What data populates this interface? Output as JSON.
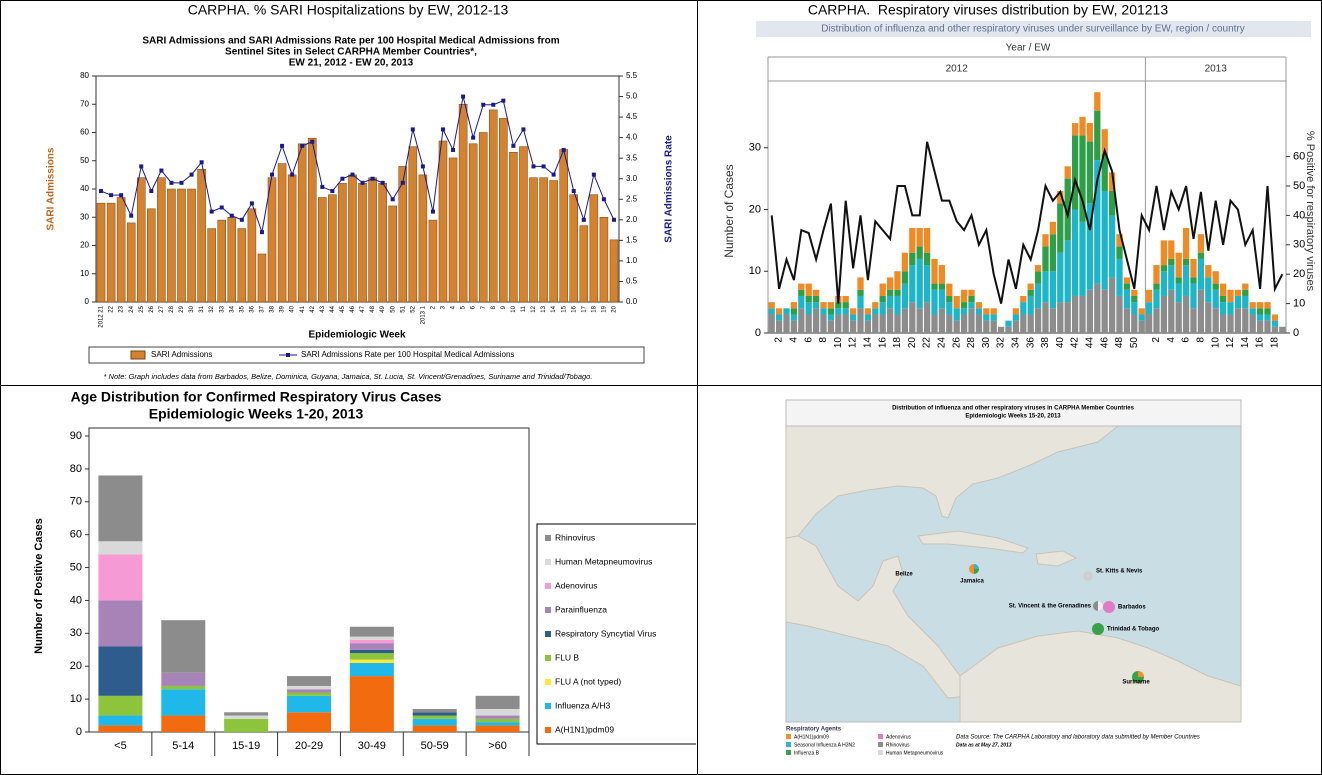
{
  "panels": [
    "CARPHA. % SARI Hospitalizations by EW, 2012-13",
    "CARPHA.  Respiratory viruses distribution by EW, 201213"
  ],
  "chart_data": [
    {
      "type": "bar",
      "title": [
        "SARI Admissions and SARI Admissions Rate per 100 Hospital Medical Admissions from",
        "Sentinel Sites in Select CARPHA Member Countries*,",
        "EW 21, 2012 - EW 20, 2013"
      ],
      "x_label": "Epidemiologic Week",
      "y_label": "SARI Admissions",
      "y2_label": "SARI Admissions Rate",
      "note": "* Note: Graph includes data from Barbados, Belize, Dominica, Guyana, Jamaica, St. Lucia, St. Vincent/Grenadines, Suriname and Trinidad/Tobago.",
      "legend": "bottom",
      "categories": [
        "2012 21",
        "22",
        "23",
        "24",
        "25",
        "26",
        "27",
        "28",
        "29",
        "30",
        "31",
        "32",
        "33",
        "34",
        "35",
        "36",
        "37",
        "38",
        "39",
        "40",
        "41",
        "42",
        "43",
        "44",
        "45",
        "46",
        "47",
        "48",
        "49",
        "50",
        "51",
        "52",
        "2013 1",
        "2",
        "3",
        "4",
        "5",
        "6",
        "7",
        "8",
        "9",
        "10",
        "11",
        "12",
        "13",
        "14",
        "15",
        "16",
        "17",
        "18",
        "19",
        "20"
      ],
      "series": [
        {
          "name": "SARI Admissions",
          "type": "bar",
          "color": "#d3822f",
          "values": [
            35,
            35,
            37,
            28,
            44,
            33,
            44,
            40,
            40,
            40,
            47,
            26,
            29,
            30,
            26,
            33,
            17,
            44,
            49,
            45,
            56,
            58,
            37,
            38,
            42,
            45,
            42,
            44,
            42,
            34,
            48,
            55,
            45,
            29,
            57,
            51,
            70,
            56,
            60,
            68,
            65,
            53,
            55,
            44,
            44,
            43,
            54,
            38,
            27,
            38,
            30,
            22
          ]
        },
        {
          "name": "SARI Admissions Rate per 100 Hospital Medical Admissions",
          "type": "line",
          "axis": "y2",
          "color": "#1a1a8c",
          "marker": true,
          "values": [
            2.7,
            2.6,
            2.6,
            2.1,
            3.3,
            2.7,
            3.2,
            2.9,
            2.9,
            3.1,
            3.4,
            2.2,
            2.3,
            2.1,
            2.0,
            2.4,
            1.7,
            3.1,
            3.8,
            3.1,
            3.8,
            3.9,
            2.8,
            2.7,
            3.0,
            3.1,
            2.9,
            3.0,
            2.9,
            2.5,
            2.9,
            4.2,
            3.3,
            2.2,
            4.2,
            3.7,
            5.0,
            4.0,
            4.8,
            4.8,
            4.9,
            3.8,
            4.2,
            3.3,
            3.3,
            3.1,
            3.7,
            2.7,
            2.0,
            3.1,
            2.5,
            2.0
          ]
        }
      ],
      "ylim": [
        0,
        80
      ],
      "yticks": [
        0,
        10,
        20,
        30,
        40,
        50,
        60,
        70,
        80
      ],
      "y2lim": [
        0,
        5.5
      ],
      "y2ticks": [
        {
          "value": 0,
          "label": "0.0"
        },
        0.5,
        {
          "value": 1,
          "label": "1.0"
        },
        1.5,
        {
          "value": 2,
          "label": "2.0"
        },
        2.5,
        {
          "value": 3,
          "label": "3.0"
        },
        3.5,
        {
          "value": 4,
          "label": "4.0"
        },
        4.5,
        {
          "value": 5,
          "label": "5.0"
        },
        5.5
      ]
    },
    {
      "type": "stacked_bar",
      "title": "Distribution of influenza and other respiratory viruses under surveillance by EW, region / country",
      "x_label": "Year / EW",
      "years": [
        "2012",
        "2013"
      ],
      "y_label": "Number of Cases",
      "y2_label": "% Positive for respiratory viruses",
      "categories": [
        null,
        "2",
        null,
        "4",
        null,
        "6",
        null,
        "8",
        null,
        "10",
        null,
        "12",
        null,
        "14",
        null,
        "16",
        null,
        "18",
        null,
        "20",
        null,
        "22",
        null,
        "24",
        null,
        "26",
        null,
        "28",
        null,
        "30",
        null,
        "32",
        null,
        "34",
        null,
        "36",
        null,
        "38",
        null,
        "40",
        null,
        "42",
        null,
        "44",
        null,
        "46",
        null,
        "48",
        null,
        "50",
        null,
        null,
        "2",
        null,
        "4",
        null,
        "6",
        null,
        "8",
        null,
        "10",
        null,
        "12",
        null,
        "14",
        null,
        "16",
        null,
        "18",
        null
      ],
      "series": [
        {
          "color": "#8c8c8c",
          "values": [
            3,
            2,
            3,
            2,
            4,
            3,
            4,
            3,
            2,
            3,
            3,
            2,
            4,
            2,
            3,
            3,
            4,
            3,
            4,
            5,
            4,
            5,
            3,
            4,
            3,
            2,
            3,
            4,
            3,
            2,
            2,
            1,
            1,
            2,
            3,
            3,
            4,
            5,
            4,
            5,
            5,
            6,
            6,
            7,
            8,
            7,
            9,
            6,
            4,
            3,
            2,
            3,
            4,
            6,
            7,
            5,
            6,
            4,
            7,
            5,
            4,
            3,
            3,
            4,
            4,
            3,
            2,
            2,
            1,
            1
          ]
        },
        {
          "color": "#1fb5c8",
          "values": [
            1,
            1,
            1,
            1,
            2,
            2,
            1,
            1,
            1,
            1,
            1,
            1,
            2,
            1,
            1,
            2,
            2,
            3,
            4,
            6,
            8,
            6,
            4,
            3,
            2,
            2,
            1,
            1,
            1,
            1,
            1,
            0,
            1,
            1,
            2,
            3,
            4,
            5,
            6,
            8,
            10,
            14,
            12,
            14,
            20,
            16,
            10,
            6,
            3,
            2,
            1,
            2,
            3,
            4,
            4,
            3,
            5,
            4,
            5,
            4,
            3,
            2,
            2,
            2,
            2,
            1,
            1,
            1,
            1,
            0
          ]
        },
        {
          "color": "#2e9e48",
          "values": [
            0,
            0,
            0,
            1,
            1,
            1,
            1,
            0,
            1,
            1,
            1,
            0,
            1,
            0,
            0,
            1,
            1,
            1,
            2,
            2,
            2,
            2,
            1,
            1,
            1,
            0,
            1,
            1,
            0,
            0,
            0,
            0,
            0,
            0,
            0,
            1,
            2,
            4,
            6,
            8,
            10,
            12,
            14,
            10,
            8,
            6,
            4,
            2,
            1,
            1,
            0,
            0,
            1,
            1,
            1,
            1,
            1,
            1,
            1,
            0,
            1,
            1,
            0,
            0,
            1,
            0,
            1,
            1,
            0,
            0
          ]
        },
        {
          "color": "#f08a24",
          "values": [
            1,
            1,
            0,
            1,
            1,
            2,
            1,
            1,
            1,
            1,
            1,
            1,
            2,
            1,
            1,
            2,
            2,
            3,
            3,
            4,
            3,
            4,
            4,
            3,
            2,
            2,
            2,
            1,
            1,
            1,
            1,
            0,
            0,
            1,
            1,
            1,
            1,
            2,
            2,
            2,
            2,
            2,
            3,
            3,
            3,
            4,
            3,
            2,
            1,
            1,
            1,
            2,
            3,
            4,
            3,
            4,
            5,
            3,
            3,
            2,
            2,
            2,
            2,
            1,
            1,
            1,
            1,
            1,
            1,
            0
          ]
        },
        {
          "type": "line",
          "axis": "y2",
          "color": "#111111",
          "values": [
            40,
            15,
            25,
            18,
            35,
            34,
            25,
            35,
            44,
            10,
            45,
            22,
            40,
            18,
            38,
            35,
            32,
            50,
            50,
            40,
            40,
            65,
            55,
            45,
            45,
            38,
            35,
            40,
            30,
            35,
            20,
            10,
            25,
            15,
            30,
            25,
            35,
            50,
            45,
            48,
            40,
            52,
            45,
            35,
            52,
            62,
            55,
            35,
            25,
            15,
            40,
            35,
            50,
            35,
            48,
            42,
            50,
            32,
            48,
            28,
            45,
            30,
            45,
            42,
            30,
            35,
            15,
            50,
            15,
            20
          ]
        }
      ],
      "ylim": [
        0,
        40
      ],
      "yticks": [
        0,
        10,
        20,
        30
      ],
      "y2lim": [
        0,
        84
      ],
      "y2ticks": [
        0,
        10,
        20,
        30,
        40,
        50,
        60
      ]
    },
    {
      "type": "stacked_bar",
      "title": [
        "Age Distribution for Confirmed Respiratory Virus Cases",
        "Epidemiologic Weeks 1-20, 2013"
      ],
      "y_label": "Number of Positive Cases",
      "legend": "right",
      "categories": [
        "<5",
        "5-14",
        "15-19",
        "20-29",
        "30-49",
        "50-59",
        ">60"
      ],
      "series": [
        {
          "name": "A(H1N1)pdm09",
          "color": "#f26b0f",
          "values": [
            2,
            5,
            0,
            6,
            17,
            2,
            2
          ]
        },
        {
          "name": "Influenza A/H3",
          "color": "#1fb8e8",
          "values": [
            3,
            8,
            0,
            5,
            4,
            2,
            1
          ]
        },
        {
          "name": "FLU A (not typed)",
          "color": "#ffe838",
          "values": [
            0,
            0,
            0,
            0,
            1,
            0,
            0
          ]
        },
        {
          "name": "FLU B",
          "color": "#8cc43c",
          "values": [
            6,
            1,
            4,
            1,
            2,
            1,
            1
          ]
        },
        {
          "name": "Respiratory Syncytial Virus",
          "color": "#2e5c8c",
          "values": [
            15,
            0,
            0,
            0,
            1,
            1,
            0
          ]
        },
        {
          "name": "Parainfluenza",
          "color": "#a784b8",
          "values": [
            14,
            4,
            0,
            1,
            2,
            0,
            1
          ]
        },
        {
          "name": "Adenovirus",
          "color": "#f59ad2",
          "values": [
            14,
            0,
            0,
            0,
            1,
            0,
            0
          ]
        },
        {
          "name": "Human Metapneumovirus",
          "color": "#d9d9d9",
          "values": [
            4,
            0,
            1,
            1,
            1,
            0,
            2
          ]
        },
        {
          "name": "Rhinovirus",
          "color": "#8c8c8c",
          "values": [
            20,
            16,
            1,
            3,
            3,
            1,
            4
          ]
        }
      ],
      "ylim": [
        0,
        90
      ],
      "yticks": [
        0,
        10,
        20,
        30,
        40,
        50,
        60,
        70,
        80,
        90
      ]
    }
  ],
  "map": {
    "title": [
      "Distribution of influenza and other respiratory viruses in CARPHA Member Countries",
      "Epidemiologic Weeks 15-20, 2013"
    ],
    "places": [
      "Belize",
      "Jamaica",
      "St. Kitts & Nevis",
      "St. Vincent & the Grenadines",
      "Barbados",
      "Trinidad & Tobago",
      "Suriname"
    ],
    "legend_title": "Respiratory Agents",
    "legend": [
      "A(H1N1)pdm09",
      "Seasonal Influenza A H3N2",
      "Influenza B",
      "Adenovirus",
      "Rhinovirus",
      "Human Metapneumovirus"
    ],
    "source": "Data Source: The CARPHA Laboratory and laboratory data submitted by Member Countries",
    "date": "Data as at May 27, 2013"
  }
}
